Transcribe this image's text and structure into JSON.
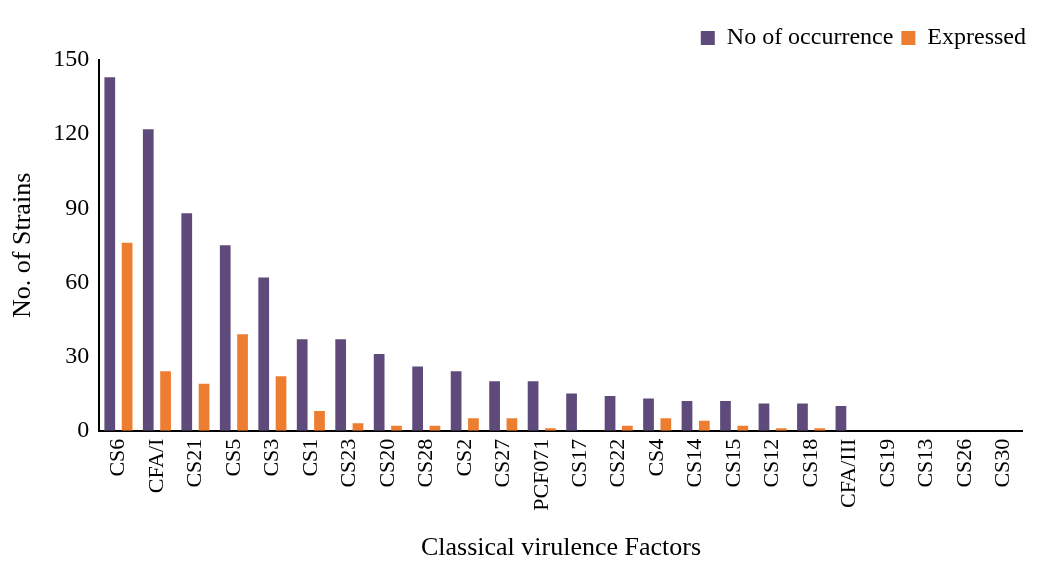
{
  "chart_data": {
    "type": "bar",
    "xlabel": "Classical virulence Factors",
    "ylabel": "No. of Strains",
    "categories": [
      "CS6",
      "CFA/I",
      "CS21",
      "CS5",
      "CS3",
      "CS1",
      "CS23",
      "CS20",
      "CS28",
      "CS2",
      "CS27",
      "PCF071",
      "CS17",
      "CS22",
      "CS4",
      "CS14",
      "CS15",
      "CS12",
      "CS18",
      "CFA/III",
      "CS19",
      "CS13",
      "CS26",
      "CS30"
    ],
    "series": [
      {
        "name": "No of occurrence",
        "color": "#5f4b7b",
        "values": [
          143,
          122,
          88,
          75,
          62,
          37,
          37,
          31,
          26,
          24,
          20,
          20,
          15,
          14,
          13,
          12,
          12,
          11,
          11,
          10,
          0,
          0,
          0,
          0
        ]
      },
      {
        "name": "Expressed",
        "color": "#ed7d31",
        "values": [
          76,
          24,
          19,
          39,
          22,
          8,
          3,
          2,
          2,
          5,
          5,
          1,
          0,
          2,
          5,
          4,
          2,
          1,
          1,
          0,
          0,
          0,
          0,
          0
        ]
      }
    ],
    "ylim": [
      0,
      150
    ],
    "yticks": [
      0,
      30,
      60,
      90,
      120,
      150
    ],
    "grid": false,
    "legend": "top right"
  }
}
